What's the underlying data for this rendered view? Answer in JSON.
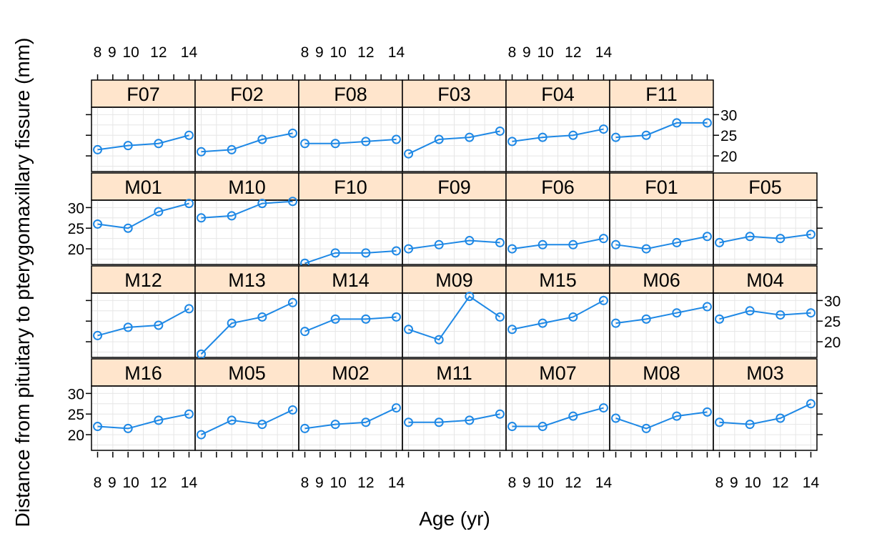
{
  "chart_data": {
    "type": "line",
    "xlabel": "Age (yr)",
    "ylabel": "Distance from pituitary to pterygomaxillary fissure (mm)",
    "x": [
      8,
      10,
      12,
      14
    ],
    "x_ticks": [
      8,
      9,
      10,
      12,
      14
    ],
    "x_tick_labels": [
      "8",
      "9",
      "10",
      "12",
      "14"
    ],
    "y_ticks": [
      20,
      25,
      30
    ],
    "y_tick_labels": [
      "20",
      "25",
      "30"
    ],
    "xlim": [
      7.6,
      14.4
    ],
    "ylim": [
      16.2,
      31.8
    ],
    "grid": true,
    "line_color": "#1e88e5",
    "strip_color": "#ffe5cc",
    "panels": [
      {
        "name": "F07",
        "values": [
          21.5,
          22.5,
          23.0,
          25.0
        ]
      },
      {
        "name": "F02",
        "values": [
          21.0,
          21.5,
          24.0,
          25.5
        ]
      },
      {
        "name": "F08",
        "values": [
          23.0,
          23.0,
          23.5,
          24.0
        ]
      },
      {
        "name": "F03",
        "values": [
          20.5,
          24.0,
          24.5,
          26.0
        ]
      },
      {
        "name": "F04",
        "values": [
          23.5,
          24.5,
          25.0,
          26.5
        ]
      },
      {
        "name": "F11",
        "values": [
          24.5,
          25.0,
          28.0,
          28.0
        ]
      },
      {
        "name": "M01",
        "values": [
          26.0,
          25.0,
          29.0,
          31.0
        ]
      },
      {
        "name": "M10",
        "values": [
          27.5,
          28.0,
          31.0,
          31.5
        ]
      },
      {
        "name": "F10",
        "values": [
          16.5,
          19.0,
          19.0,
          19.5
        ]
      },
      {
        "name": "F09",
        "values": [
          20.0,
          21.0,
          22.0,
          21.5
        ]
      },
      {
        "name": "F06",
        "values": [
          20.0,
          21.0,
          21.0,
          22.5
        ]
      },
      {
        "name": "F01",
        "values": [
          21.0,
          20.0,
          21.5,
          23.0
        ]
      },
      {
        "name": "F05",
        "values": [
          21.5,
          23.0,
          22.5,
          23.5
        ]
      },
      {
        "name": "M12",
        "values": [
          21.5,
          23.5,
          24.0,
          28.0
        ]
      },
      {
        "name": "M13",
        "values": [
          17.0,
          24.5,
          26.0,
          29.5
        ]
      },
      {
        "name": "M14",
        "values": [
          22.5,
          25.5,
          25.5,
          26.0
        ]
      },
      {
        "name": "M09",
        "values": [
          23.0,
          20.5,
          31.0,
          26.0
        ]
      },
      {
        "name": "M15",
        "values": [
          23.0,
          24.5,
          26.0,
          30.0
        ]
      },
      {
        "name": "M06",
        "values": [
          24.5,
          25.5,
          27.0,
          28.5
        ]
      },
      {
        "name": "M04",
        "values": [
          25.5,
          27.5,
          26.5,
          27.0
        ]
      },
      {
        "name": "M16",
        "values": [
          22.0,
          21.5,
          23.5,
          25.0
        ]
      },
      {
        "name": "M05",
        "values": [
          20.0,
          23.5,
          22.5,
          26.0
        ]
      },
      {
        "name": "M02",
        "values": [
          21.5,
          22.5,
          23.0,
          26.5
        ]
      },
      {
        "name": "M11",
        "values": [
          23.0,
          23.0,
          23.5,
          25.0
        ]
      },
      {
        "name": "M07",
        "values": [
          22.0,
          22.0,
          24.5,
          26.5
        ]
      },
      {
        "name": "M08",
        "values": [
          24.0,
          21.5,
          24.5,
          25.5
        ]
      },
      {
        "name": "M03",
        "values": [
          23.0,
          22.5,
          24.0,
          27.5
        ]
      }
    ]
  }
}
